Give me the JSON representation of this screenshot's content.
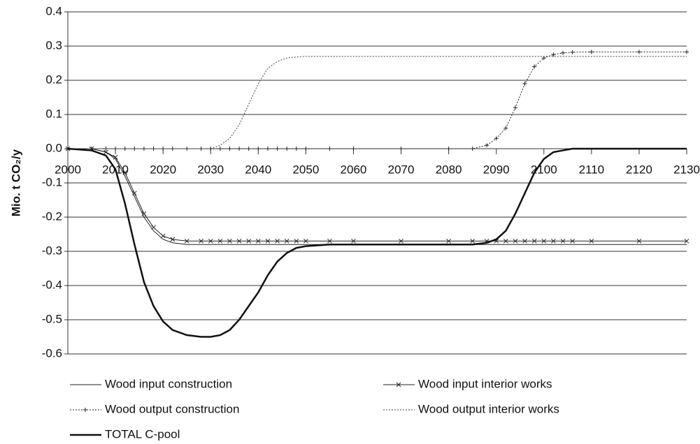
{
  "chart_data": {
    "type": "line",
    "ylabel": "Mio. t CO₂/y",
    "x": [
      2000,
      2005,
      2008,
      2010,
      2012,
      2014,
      2016,
      2018,
      2020,
      2022,
      2025,
      2028,
      2030,
      2032,
      2034,
      2036,
      2038,
      2040,
      2042,
      2044,
      2046,
      2048,
      2050,
      2055,
      2060,
      2070,
      2080,
      2085,
      2088,
      2090,
      2092,
      2094,
      2096,
      2098,
      2100,
      2102,
      2104,
      2106,
      2110,
      2120,
      2130
    ],
    "series": [
      {
        "name": "Wood input construction",
        "color": "#222222",
        "width": 1,
        "style": "solid",
        "marker": "none",
        "values": [
          0,
          0,
          -0.01,
          -0.03,
          -0.08,
          -0.14,
          -0.2,
          -0.24,
          -0.265,
          -0.275,
          -0.28,
          -0.28,
          -0.28,
          -0.28,
          -0.28,
          -0.28,
          -0.28,
          -0.28,
          -0.28,
          -0.28,
          -0.28,
          -0.28,
          -0.28,
          -0.28,
          -0.28,
          -0.28,
          -0.28,
          -0.28,
          -0.28,
          -0.28,
          -0.28,
          -0.28,
          -0.28,
          -0.28,
          -0.28,
          -0.28,
          -0.28,
          -0.28,
          -0.28,
          -0.28,
          -0.28
        ]
      },
      {
        "name": "Wood input interior works",
        "color": "#222222",
        "width": 1,
        "style": "solid",
        "marker": "x",
        "values": [
          0,
          0,
          -0.01,
          -0.025,
          -0.07,
          -0.13,
          -0.19,
          -0.23,
          -0.255,
          -0.265,
          -0.27,
          -0.27,
          -0.27,
          -0.27,
          -0.27,
          -0.27,
          -0.27,
          -0.27,
          -0.27,
          -0.27,
          -0.27,
          -0.27,
          -0.27,
          -0.27,
          -0.27,
          -0.27,
          -0.27,
          -0.27,
          -0.27,
          -0.27,
          -0.27,
          -0.27,
          -0.27,
          -0.27,
          -0.27,
          -0.27,
          -0.27,
          -0.27,
          -0.27,
          -0.27,
          -0.27
        ]
      },
      {
        "name": "Wood output construction",
        "color": "#222222",
        "width": 1,
        "style": "dotted",
        "marker": "+",
        "values": [
          0,
          0,
          0,
          0,
          0,
          0,
          0,
          0,
          0,
          0,
          0,
          0,
          0,
          0,
          0,
          0,
          0,
          0,
          0,
          0,
          0,
          0,
          0,
          0,
          0,
          0,
          0,
          0,
          0.01,
          0.03,
          0.06,
          0.12,
          0.19,
          0.24,
          0.265,
          0.275,
          0.28,
          0.282,
          0.283,
          0.283,
          0.283
        ]
      },
      {
        "name": "Wood output interior works",
        "color": "#444444",
        "width": 1,
        "style": "dotted",
        "marker": "none",
        "values": [
          0,
          0,
          0,
          0,
          0,
          0,
          0,
          0,
          0,
          0,
          0,
          0,
          0,
          0.01,
          0.03,
          0.07,
          0.13,
          0.19,
          0.235,
          0.255,
          0.265,
          0.268,
          0.27,
          0.27,
          0.27,
          0.27,
          0.27,
          0.27,
          0.27,
          0.27,
          0.27,
          0.27,
          0.27,
          0.27,
          0.27,
          0.27,
          0.27,
          0.27,
          0.27,
          0.27,
          0.27
        ]
      },
      {
        "name": "TOTAL C-pool",
        "color": "#111111",
        "width": 2.5,
        "style": "solid",
        "marker": "none",
        "values": [
          0,
          -0.005,
          -0.02,
          -0.06,
          -0.16,
          -0.28,
          -0.39,
          -0.46,
          -0.505,
          -0.53,
          -0.545,
          -0.55,
          -0.55,
          -0.545,
          -0.53,
          -0.5,
          -0.46,
          -0.42,
          -0.37,
          -0.33,
          -0.305,
          -0.29,
          -0.285,
          -0.28,
          -0.28,
          -0.28,
          -0.28,
          -0.28,
          -0.275,
          -0.265,
          -0.24,
          -0.19,
          -0.13,
          -0.07,
          -0.03,
          -0.01,
          -0.005,
          0,
          0,
          0,
          0
        ]
      }
    ],
    "xlim": [
      2000,
      2130
    ],
    "xticks": [
      2000,
      2010,
      2020,
      2030,
      2040,
      2050,
      2060,
      2070,
      2080,
      2090,
      2100,
      2110,
      2120,
      2130
    ],
    "ylim": [
      -0.6,
      0.4
    ],
    "yticks": [
      0.4,
      0.3,
      0.2,
      0.1,
      {
        "value": 0,
        "label": "0.0"
      },
      -0.1,
      -0.2,
      -0.3,
      -0.4,
      -0.5,
      -0.6
    ],
    "grid": true,
    "legend": "bottom"
  }
}
